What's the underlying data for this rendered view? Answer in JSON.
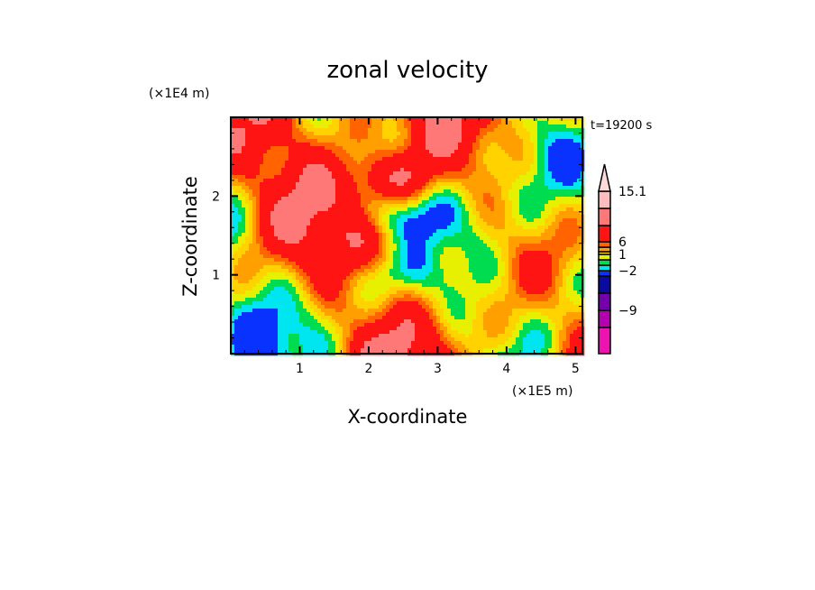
{
  "chart_data": {
    "type": "heatmap",
    "title": "zonal velocity",
    "xlabel": "X-coordinate",
    "ylabel": "Z-coordinate",
    "x_unit": "(×1E5 m)",
    "y_unit": "(×1E4 m)",
    "time_label": "t=19200 s",
    "xlim": [
      0,
      5.1
    ],
    "ylim": [
      0,
      3
    ],
    "x_ticks": [
      "1",
      "2",
      "3",
      "4",
      "5"
    ],
    "x_tick_values": [
      1,
      2,
      3,
      4,
      5
    ],
    "y_ticks": [
      "1",
      "2"
    ],
    "y_tick_values": [
      1,
      2
    ],
    "colorbar": {
      "labels": [
        "15.1",
        "6",
        "1",
        "−2",
        "−9"
      ],
      "label_levels": [
        15.1,
        6,
        1,
        -2,
        -9
      ],
      "levels": [
        -15,
        -12,
        -9,
        -6,
        -3,
        -2,
        -1,
        0,
        1,
        2,
        3,
        6,
        9,
        12,
        15.1
      ],
      "colors": [
        "#ee12b0",
        "#b400b0",
        "#7400ac",
        "#0a0aa0",
        "#0a32ff",
        "#00e6f0",
        "#00dc50",
        "#e6f000",
        "#ffd200",
        "#ffa000",
        "#ff6400",
        "#ff1414",
        "#ff7878",
        "#ffbcbc",
        "#ffd8d8"
      ]
    }
  }
}
